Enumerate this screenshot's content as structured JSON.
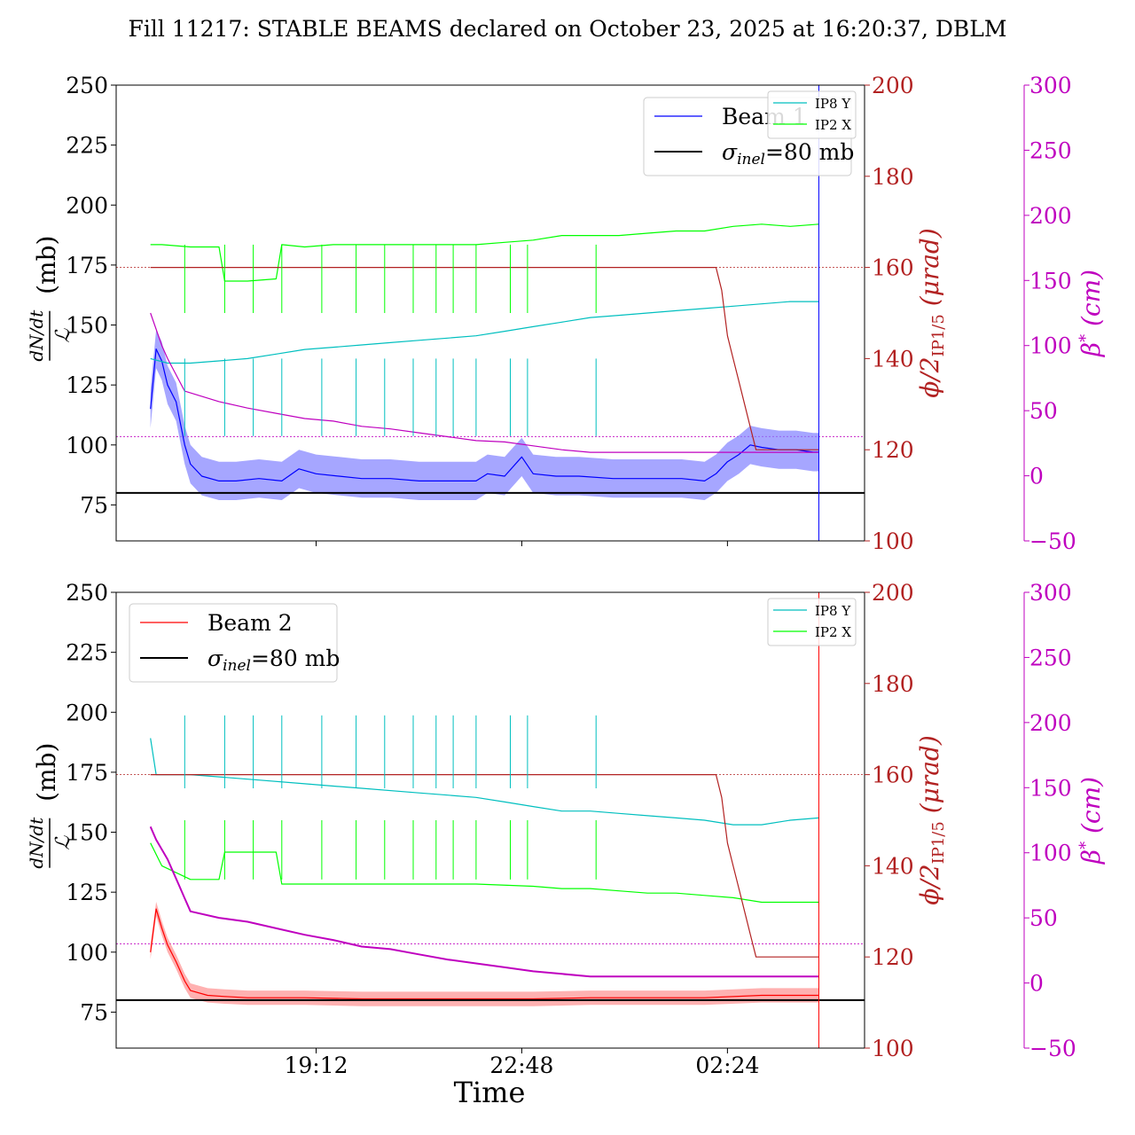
{
  "figure_title": "Fill 11217: STABLE BEAMS declared on October 23, 2025 at 16:20:37, DBLM",
  "xlabel": "Time",
  "colors": {
    "beam1": "#0000ff",
    "beam1_band": "#8080ff",
    "beam2": "#ff0000",
    "beam2_band": "#ff9090",
    "ip8y": "#00bfbf",
    "ip2x": "#00ff00",
    "crossing": "#b22222",
    "beta": "#bf00bf",
    "sigma": "#000000"
  },
  "axes_labels": {
    "left_top": "(mb)",
    "left_frac_num": "dN/dt",
    "left_frac_den": "ℒ",
    "right1_main": "ϕ/2",
    "right1_sub": "IP1/5",
    "right1_unit": " (μrad)",
    "right2_main": "β",
    "right2_sup": "*",
    "right2_unit": " (cm)"
  },
  "chart_data": [
    {
      "type": "line",
      "panel": "top",
      "x_ticks": [
        "19:12",
        "22:48",
        "02:24"
      ],
      "x_tick_hours": [
        19.2,
        22.8,
        26.4
      ],
      "xlim_hours": [
        15.7,
        28.8
      ],
      "ylim_left": [
        60,
        250
      ],
      "y_ticks_left": [
        75,
        100,
        125,
        150,
        175,
        200,
        225,
        250
      ],
      "ylim_right_crossing": [
        100,
        200
      ],
      "y_ticks_right_crossing": [
        100,
        120,
        140,
        160,
        180,
        200
      ],
      "ylim_right_beta": [
        -50,
        300
      ],
      "y_ticks_right_beta": [
        -50,
        0,
        50,
        100,
        150,
        200,
        250,
        300
      ],
      "legend_main": [
        "Beam 1",
        "σinel=80 mb"
      ],
      "legend_small": [
        "IP8 Y",
        "IP2 X"
      ],
      "sigma_inel": 80,
      "series": [
        {
          "name": "Beam 1",
          "axis": "left",
          "points": [
            [
              16.3,
              115
            ],
            [
              16.4,
              140
            ],
            [
              16.5,
              135
            ],
            [
              16.6,
              125
            ],
            [
              16.75,
              118
            ],
            [
              16.9,
              100
            ],
            [
              17.0,
              92
            ],
            [
              17.2,
              87
            ],
            [
              17.5,
              85
            ],
            [
              17.8,
              85
            ],
            [
              18.2,
              86
            ],
            [
              18.6,
              85
            ],
            [
              18.9,
              90
            ],
            [
              19.2,
              88
            ],
            [
              19.6,
              87
            ],
            [
              20.0,
              86
            ],
            [
              20.5,
              86
            ],
            [
              21.0,
              85
            ],
            [
              21.5,
              85
            ],
            [
              22.0,
              85
            ],
            [
              22.2,
              88
            ],
            [
              22.5,
              87
            ],
            [
              22.8,
              95
            ],
            [
              23.0,
              88
            ],
            [
              23.4,
              87
            ],
            [
              23.8,
              87
            ],
            [
              24.4,
              86
            ],
            [
              25.0,
              86
            ],
            [
              25.6,
              86
            ],
            [
              26.0,
              85
            ],
            [
              26.2,
              88
            ],
            [
              26.4,
              93
            ],
            [
              26.6,
              96
            ],
            [
              26.8,
              100
            ],
            [
              27.0,
              99
            ],
            [
              27.3,
              98
            ],
            [
              27.6,
              98
            ],
            [
              27.9,
              97
            ],
            [
              28.0,
              97
            ]
          ]
        },
        {
          "name": "IP8 Y",
          "axis": "crossing",
          "points": [
            [
              16.3,
              140
            ],
            [
              16.6,
              139
            ],
            [
              17.0,
              139
            ],
            [
              17.5,
              139.5
            ],
            [
              18.0,
              140
            ],
            [
              18.5,
              141
            ],
            [
              19.0,
              142
            ],
            [
              19.5,
              142.5
            ],
            [
              20.0,
              143
            ],
            [
              20.5,
              143.5
            ],
            [
              21.0,
              144
            ],
            [
              21.5,
              144.5
            ],
            [
              22.0,
              145
            ],
            [
              22.5,
              146
            ],
            [
              23.0,
              147
            ],
            [
              23.5,
              148
            ],
            [
              24.0,
              149
            ],
            [
              24.5,
              149.5
            ],
            [
              25.0,
              150
            ],
            [
              25.5,
              150.5
            ],
            [
              26.0,
              151
            ],
            [
              26.5,
              151.5
            ],
            [
              27.0,
              152
            ],
            [
              27.5,
              152.5
            ],
            [
              28.0,
              152.5
            ]
          ]
        },
        {
          "name": "IP2 X",
          "axis": "crossing",
          "points": [
            [
              16.3,
              165
            ],
            [
              16.5,
              165
            ],
            [
              17.0,
              164.5
            ],
            [
              17.5,
              164.5
            ],
            [
              17.6,
              157
            ],
            [
              18.0,
              157
            ],
            [
              18.5,
              157.5
            ],
            [
              18.6,
              165
            ],
            [
              19.0,
              164.5
            ],
            [
              19.5,
              165
            ],
            [
              20.0,
              165
            ],
            [
              20.5,
              165
            ],
            [
              21.0,
              165
            ],
            [
              21.5,
              165
            ],
            [
              22.0,
              165
            ],
            [
              22.5,
              165.5
            ],
            [
              23.0,
              166
            ],
            [
              23.5,
              167
            ],
            [
              24.0,
              167
            ],
            [
              24.5,
              167
            ],
            [
              25.0,
              167.5
            ],
            [
              25.5,
              168
            ],
            [
              26.0,
              168
            ],
            [
              26.5,
              169
            ],
            [
              27.0,
              169.5
            ],
            [
              27.5,
              169
            ],
            [
              28.0,
              169.5
            ]
          ]
        },
        {
          "name": "ϕ/2 IP1/5",
          "axis": "crossing",
          "points": [
            [
              16.3,
              160
            ],
            [
              26.2,
              160
            ],
            [
              26.3,
              155
            ],
            [
              26.4,
              145
            ],
            [
              26.5,
              140
            ],
            [
              26.6,
              135
            ],
            [
              26.7,
              130
            ],
            [
              26.8,
              125
            ],
            [
              26.9,
              120
            ],
            [
              27.0,
              120
            ],
            [
              28.0,
              120
            ]
          ]
        },
        {
          "name": "β*",
          "axis": "beta",
          "points": [
            [
              16.3,
              125
            ],
            [
              16.5,
              100
            ],
            [
              16.6,
              90
            ],
            [
              16.9,
              65
            ],
            [
              17.5,
              57
            ],
            [
              18.0,
              52
            ],
            [
              18.5,
              48
            ],
            [
              19.0,
              44
            ],
            [
              19.5,
              42
            ],
            [
              20.0,
              38
            ],
            [
              20.5,
              36
            ],
            [
              21.0,
              33
            ],
            [
              21.5,
              30
            ],
            [
              22.0,
              27
            ],
            [
              22.5,
              26
            ],
            [
              23.0,
              23
            ],
            [
              23.5,
              20
            ],
            [
              24.0,
              18
            ],
            [
              28.0,
              18
            ]
          ]
        }
      ]
    },
    {
      "type": "line",
      "panel": "bottom",
      "x_ticks": [
        "19:12",
        "22:48",
        "02:24"
      ],
      "x_tick_hours": [
        19.2,
        22.8,
        26.4
      ],
      "xlim_hours": [
        15.7,
        28.8
      ],
      "ylim_left": [
        60,
        250
      ],
      "y_ticks_left": [
        75,
        100,
        125,
        150,
        175,
        200,
        225,
        250
      ],
      "ylim_right_crossing": [
        100,
        200
      ],
      "y_ticks_right_crossing": [
        100,
        120,
        140,
        160,
        180,
        200
      ],
      "ylim_right_beta": [
        -50,
        300
      ],
      "y_ticks_right_beta": [
        -50,
        0,
        50,
        100,
        150,
        200,
        250,
        300
      ],
      "legend_main": [
        "Beam 2",
        "σinel=80 mb"
      ],
      "legend_small": [
        "IP8 Y",
        "IP2 X"
      ],
      "sigma_inel": 80,
      "series": [
        {
          "name": "Beam 2",
          "axis": "left",
          "points": [
            [
              16.3,
              100
            ],
            [
              16.4,
              118
            ],
            [
              16.5,
              110
            ],
            [
              16.6,
              103
            ],
            [
              16.75,
              96
            ],
            [
              16.9,
              88
            ],
            [
              17.0,
              84
            ],
            [
              17.3,
              82
            ],
            [
              17.6,
              81.5
            ],
            [
              18.0,
              81
            ],
            [
              19.0,
              81
            ],
            [
              20.0,
              80.5
            ],
            [
              21.0,
              80.5
            ],
            [
              22.0,
              80.5
            ],
            [
              23.0,
              80.5
            ],
            [
              24.0,
              81
            ],
            [
              25.0,
              81
            ],
            [
              26.0,
              81
            ],
            [
              27.0,
              82
            ],
            [
              28.0,
              82
            ]
          ]
        },
        {
          "name": "IP8 Y",
          "axis": "crossing",
          "points": [
            [
              16.3,
              168
            ],
            [
              16.4,
              160
            ],
            [
              17.0,
              160
            ],
            [
              18.0,
              159
            ],
            [
              19.0,
              158
            ],
            [
              19.5,
              157.5
            ],
            [
              20.0,
              157
            ],
            [
              21.0,
              156
            ],
            [
              21.5,
              155.5
            ],
            [
              22.0,
              155
            ],
            [
              22.5,
              154
            ],
            [
              23.0,
              153
            ],
            [
              23.5,
              152
            ],
            [
              24.0,
              152
            ],
            [
              24.5,
              151.5
            ],
            [
              25.0,
              151
            ],
            [
              25.5,
              150.5
            ],
            [
              26.0,
              150
            ],
            [
              26.5,
              149
            ],
            [
              27.0,
              149
            ],
            [
              27.5,
              150
            ],
            [
              28.0,
              150.5
            ]
          ]
        },
        {
          "name": "IP2 X",
          "axis": "crossing",
          "points": [
            [
              16.3,
              145
            ],
            [
              16.5,
              140
            ],
            [
              17.0,
              137
            ],
            [
              17.5,
              137
            ],
            [
              17.6,
              143
            ],
            [
              18.0,
              143
            ],
            [
              18.5,
              143
            ],
            [
              18.6,
              136
            ],
            [
              19.0,
              136
            ],
            [
              19.5,
              136
            ],
            [
              20.0,
              136
            ],
            [
              21.0,
              136
            ],
            [
              22.0,
              136
            ],
            [
              23.0,
              135.5
            ],
            [
              23.5,
              135
            ],
            [
              24.0,
              135
            ],
            [
              24.5,
              134.5
            ],
            [
              25.0,
              134
            ],
            [
              25.5,
              134
            ],
            [
              26.0,
              133.5
            ],
            [
              26.5,
              133
            ],
            [
              27.0,
              132
            ],
            [
              27.5,
              132
            ],
            [
              28.0,
              132
            ]
          ]
        },
        {
          "name": "ϕ/2 IP1/5",
          "axis": "crossing",
          "points": [
            [
              16.3,
              160
            ],
            [
              26.2,
              160
            ],
            [
              26.3,
              155
            ],
            [
              26.4,
              145
            ],
            [
              26.5,
              140
            ],
            [
              26.6,
              135
            ],
            [
              26.7,
              130
            ],
            [
              26.8,
              125
            ],
            [
              26.9,
              120
            ],
            [
              27.0,
              120
            ],
            [
              28.0,
              120
            ]
          ]
        },
        {
          "name": "β*",
          "axis": "beta",
          "points": [
            [
              16.3,
              120
            ],
            [
              16.4,
              110
            ],
            [
              16.6,
              95
            ],
            [
              16.7,
              85
            ],
            [
              16.8,
              75
            ],
            [
              16.9,
              65
            ],
            [
              17.0,
              55
            ],
            [
              17.5,
              50
            ],
            [
              18.0,
              47
            ],
            [
              18.5,
              42
            ],
            [
              19.0,
              37
            ],
            [
              19.5,
              33
            ],
            [
              20.0,
              28
            ],
            [
              20.5,
              26
            ],
            [
              21.0,
              22
            ],
            [
              21.5,
              18
            ],
            [
              22.0,
              15
            ],
            [
              22.5,
              12
            ],
            [
              23.0,
              9
            ],
            [
              23.5,
              7
            ],
            [
              24.0,
              5
            ],
            [
              28.0,
              5
            ]
          ]
        }
      ]
    }
  ]
}
